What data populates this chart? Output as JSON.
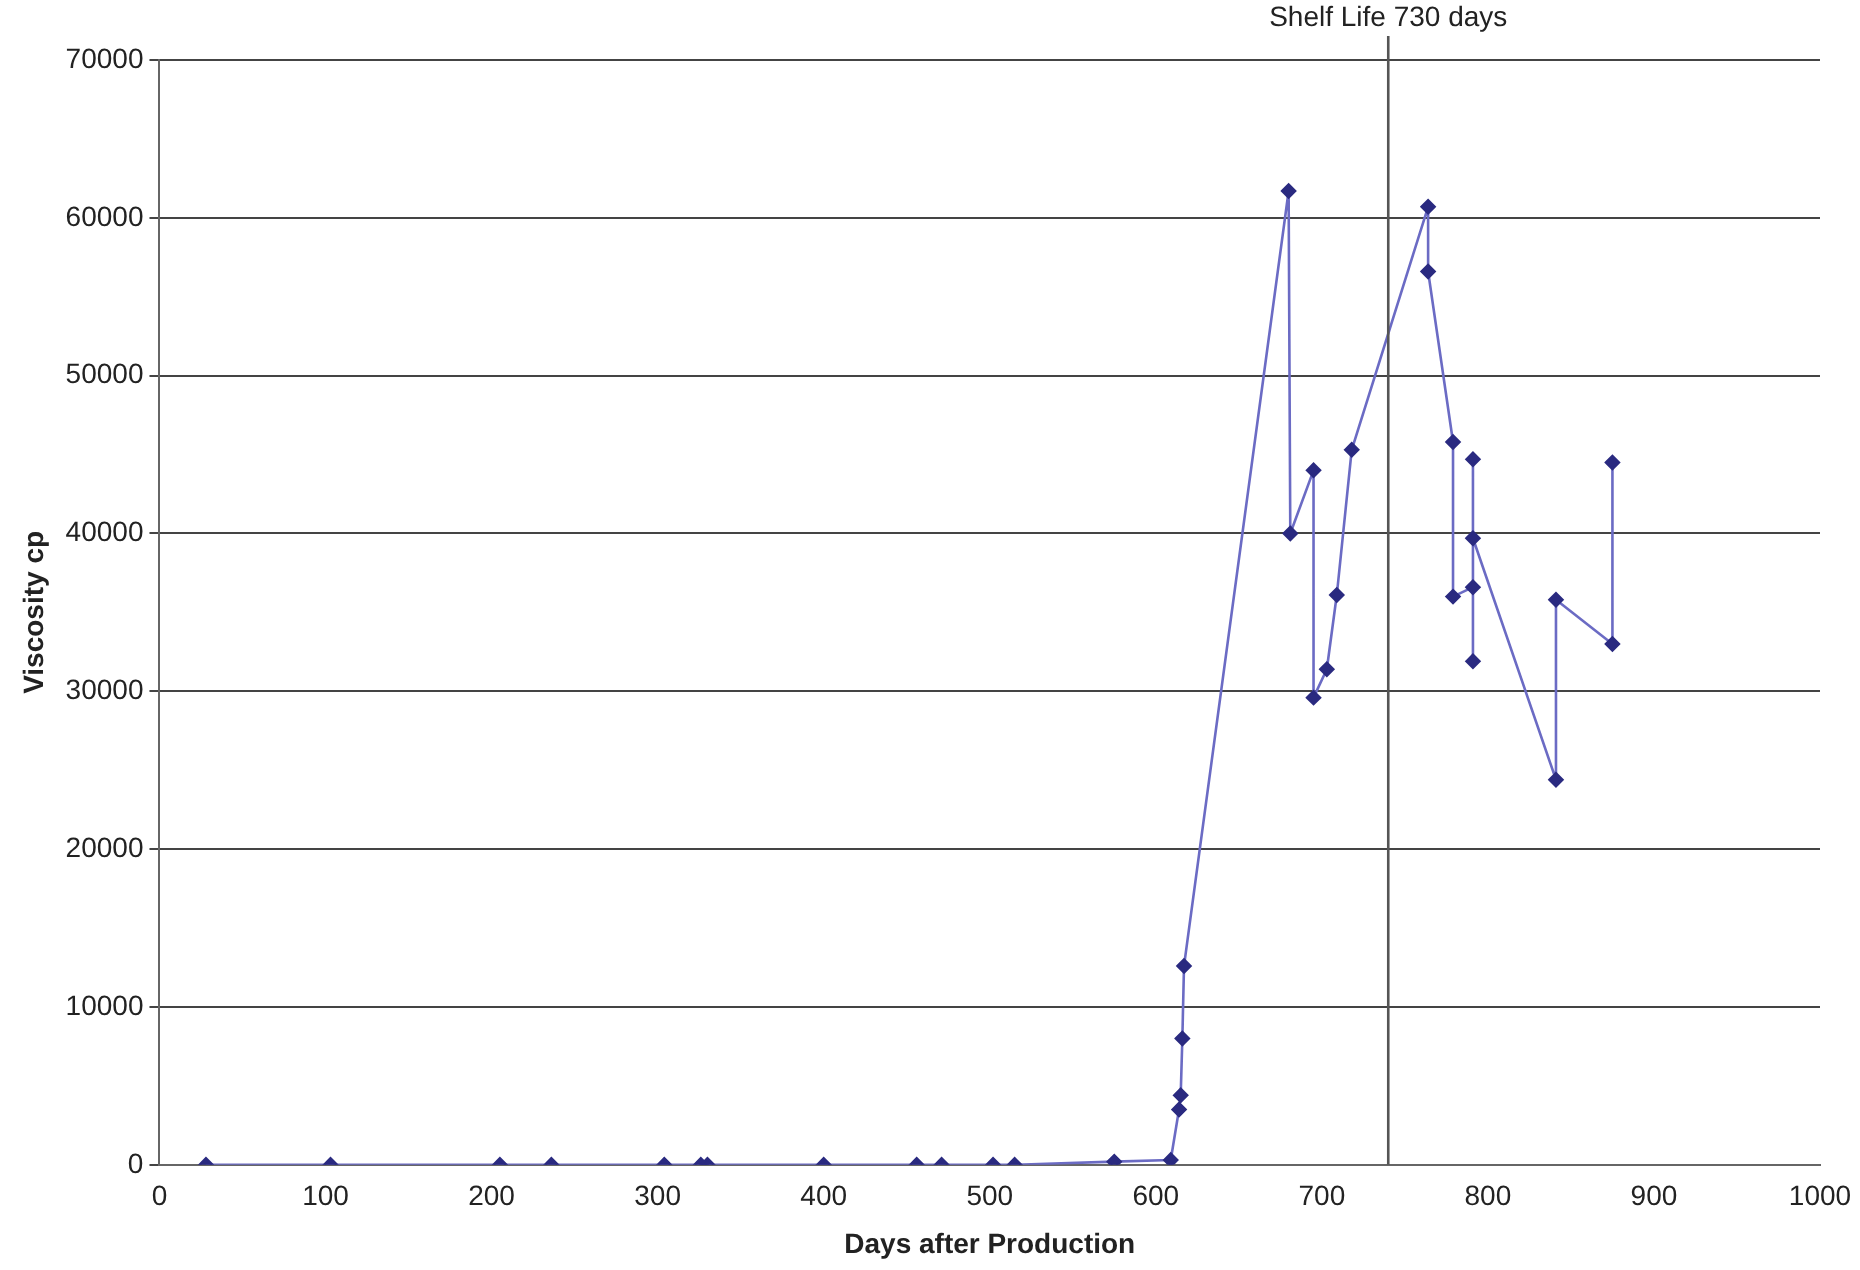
{
  "chart_data": {
    "type": "line",
    "xlabel": "Days after Production",
    "ylabel": "Viscosity cp",
    "x": [
      28,
      103,
      205,
      236,
      304,
      326,
      330,
      400,
      456,
      471,
      502,
      515,
      575,
      609,
      614,
      615,
      616,
      617,
      680,
      681,
      695,
      695,
      703,
      709,
      718,
      764,
      764,
      779,
      779,
      791,
      791,
      791,
      791,
      841,
      841,
      875,
      875
    ],
    "series": [
      {
        "color": "#6b6bc4",
        "values": [
          0,
          0,
          0,
          0,
          0,
          0,
          0,
          0,
          0,
          0,
          0,
          0,
          200,
          300,
          3500,
          4400,
          8000,
          12600,
          61700,
          40000,
          44000,
          29600,
          31400,
          36100,
          45300,
          60700,
          56600,
          45800,
          36000,
          36600,
          44700,
          31900,
          39700,
          24400,
          35800,
          33000,
          44500
        ]
      }
    ],
    "xlim": [
      0,
      1000
    ],
    "xticks": [
      0,
      100,
      200,
      300,
      400,
      500,
      600,
      700,
      800,
      900,
      1000
    ],
    "ylim": [
      0,
      70000
    ],
    "yticks": [
      0,
      10000,
      20000,
      30000,
      40000,
      50000,
      60000,
      70000
    ],
    "grid": "y",
    "legend": false,
    "marker": "diamond",
    "line_style": "solid",
    "ref_lines": [
      {
        "axis": "x",
        "value": 740,
        "label": "Shelf Life 730 days",
        "color": "#555555",
        "line_style": "solid"
      }
    ]
  }
}
